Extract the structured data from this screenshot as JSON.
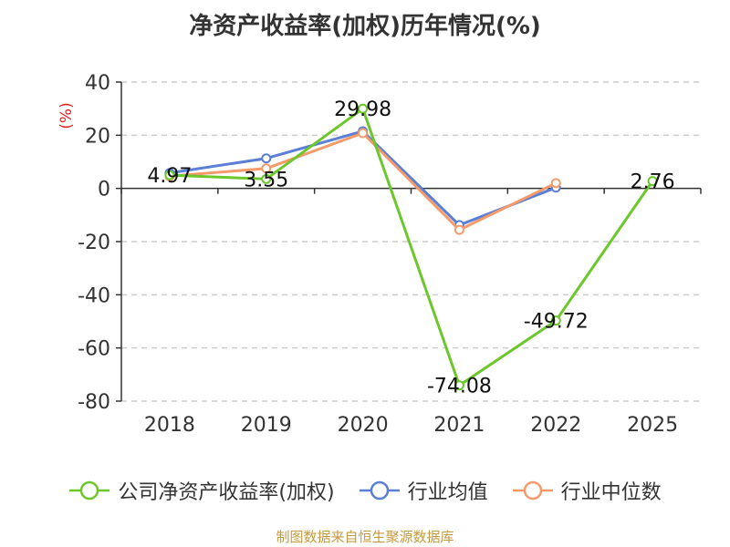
{
  "chart_data": {
    "type": "line",
    "title": "净资产收益率(加权)历年情况(%)",
    "ylabel": "(%)",
    "xlabel": "",
    "categories": [
      "2018",
      "2019",
      "2020",
      "2021",
      "2022",
      "2025"
    ],
    "ylim": [
      -80,
      40
    ],
    "yticks": [
      40,
      20,
      0,
      -20,
      -40,
      -60,
      -80
    ],
    "grid": true,
    "legend_position": "bottom",
    "series": [
      {
        "name": "公司净资产收益率(加权)",
        "color": "#6cc72b",
        "values": [
          4.97,
          3.55,
          29.98,
          -74.08,
          -49.72,
          2.76
        ],
        "labels": [
          "4.97",
          "3.55",
          "29.98",
          "-74.08",
          "-49.72",
          "2.76"
        ]
      },
      {
        "name": "行业均值",
        "color": "#5b7fd6",
        "values": [
          5.8,
          11.3,
          21.5,
          -13.8,
          0.3,
          null
        ]
      },
      {
        "name": "行业中位数",
        "color": "#f59a6b",
        "values": [
          4.6,
          7.5,
          20.8,
          -15.6,
          2.0,
          null
        ]
      }
    ]
  },
  "footer": {
    "source": "制图数据来自恒生聚源数据库"
  }
}
